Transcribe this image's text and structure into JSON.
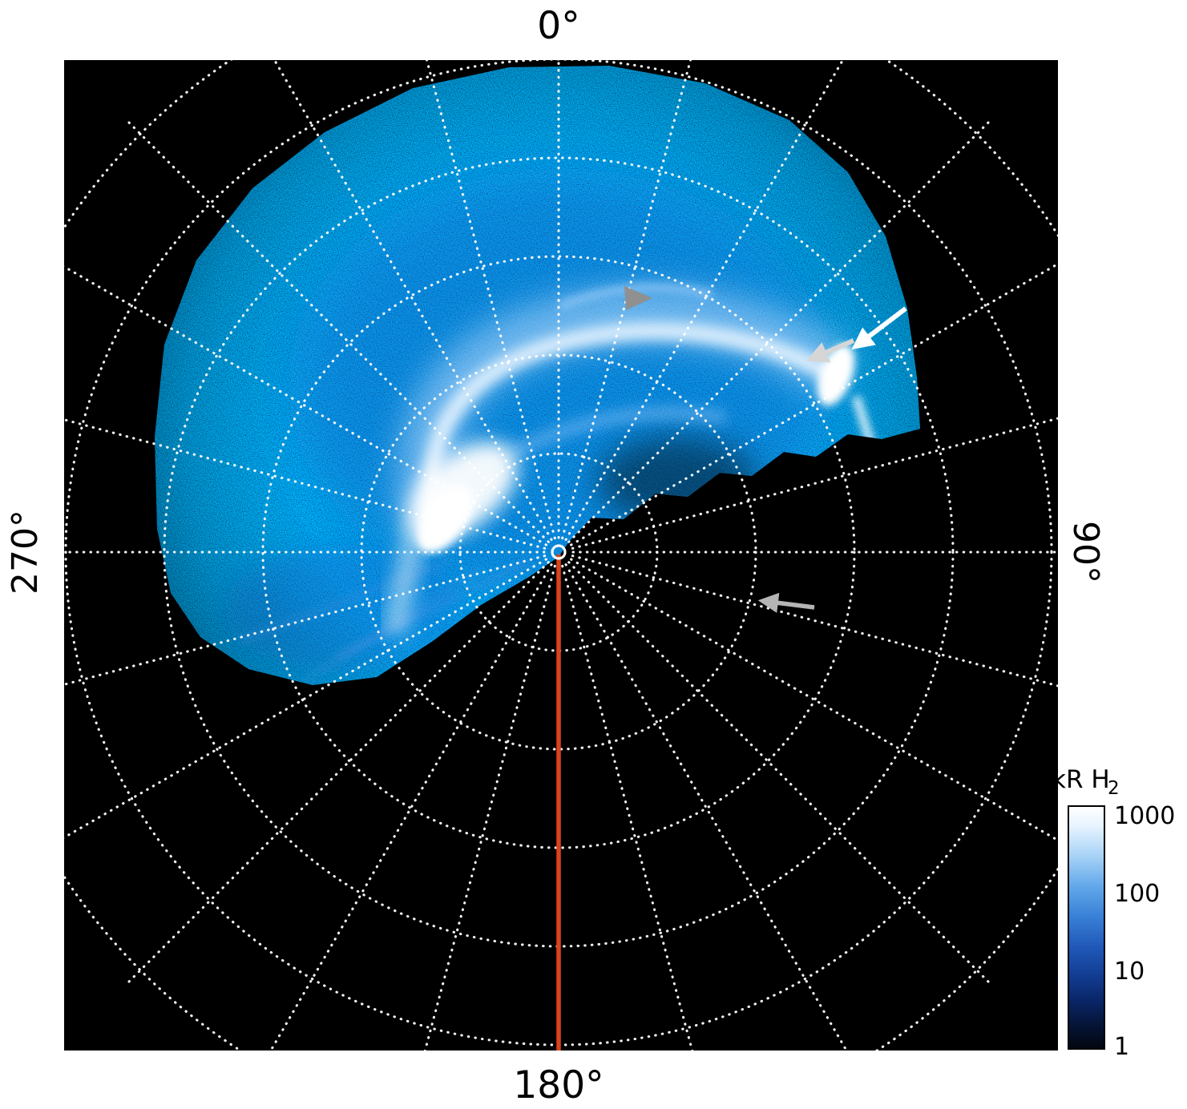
{
  "figure": {
    "labels": {
      "top": "0°",
      "right": "90°",
      "bottom": "180°",
      "left": "270°"
    },
    "colorbar": {
      "title_main": "kR H",
      "title_sub": "2",
      "ticks": [
        "1000",
        "100",
        "10",
        "1"
      ]
    },
    "colors": {
      "plot_background": "#000000",
      "page_background": "#ffffff",
      "grid": "#ffffff",
      "meridian_line": "#d9441a",
      "emission_dim": "#0a2268",
      "emission_mid": "#2f7fd0",
      "emission_bright": "#ffffff"
    }
  },
  "chart_data": {
    "type": "heatmap",
    "projection": "polar",
    "title": "",
    "angle_tick_labels": [
      "0°",
      "90°",
      "180°",
      "270°"
    ],
    "angle_convention": "0° at top, 90° right, 180° bottom, 270° left",
    "radial_rings": 5,
    "spoke_step_deg": 15,
    "grid_style": "white dotted circles and radial spokes",
    "meridian_marker": {
      "angle_deg": 180,
      "color": "#d9441a",
      "from": "pole center",
      "to": "outer edge"
    },
    "colorbar": {
      "label": "kR H2",
      "scale": "log",
      "ticks": [
        1000,
        100,
        10,
        1
      ],
      "top_color": "white",
      "bottom_color": "black"
    },
    "data_coverage": "auroral emission image fills sector from ~255° through 0° to ~75°; remainder of polar plot is black (no data)",
    "features": [
      {
        "name": "main-auroral-oval",
        "description": "bright partial arc of H2 emission around the pole; brightest (saturated white, ~1000 kR) blob on the left/dusk side near mid radius, arc continues over the pole to a second bright spot upper right"
      },
      {
        "name": "bright-spot-upper-right",
        "description": "localized intense emission spot indicated by white and gray arrows"
      },
      {
        "name": "diffuse-emission",
        "description": "speckled faint blue emission (~1-100 kR) covering the imaged sector, fading toward edges"
      },
      {
        "name": "center-marker",
        "description": "small white circle at the pole (plot center)"
      }
    ],
    "annotations": [
      {
        "name": "white-arrow",
        "points_to": "bright emission spot upper right",
        "direction": "down-left"
      },
      {
        "name": "gray-arrow-upper",
        "points_to": "bright emission spot upper right (just left of white arrow)",
        "direction": "down-left"
      },
      {
        "name": "gray-arrowhead",
        "location": "above plot center",
        "direction": "right",
        "points_to": "faint poleward arc"
      },
      {
        "name": "gray-arrow-lower",
        "location": "lower right quadrant (no-data region)",
        "direction": "left"
      }
    ]
  }
}
